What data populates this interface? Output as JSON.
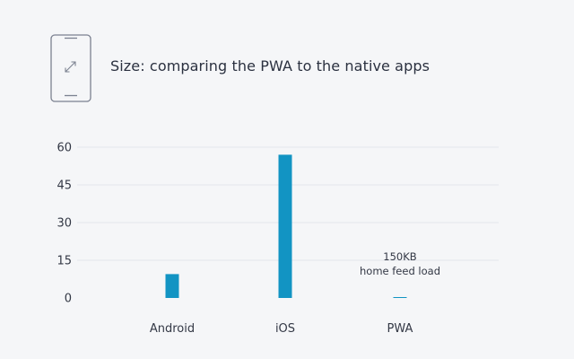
{
  "header": {
    "title": "Size: comparing the PWA to the native apps",
    "icon": "phone-resize-icon"
  },
  "colors": {
    "bar": "#1294c3",
    "grid": "#e3e6ec",
    "icon_stroke": "#7b8190",
    "background": "#f5f6f8"
  },
  "chart_data": {
    "type": "bar",
    "categories": [
      "Android",
      "iOS",
      "PWA"
    ],
    "values": [
      9.5,
      57,
      0.15
    ],
    "yticks": [
      0,
      15,
      30,
      45,
      60
    ],
    "ylim": [
      0,
      60
    ],
    "grid": true,
    "annotations": [
      {
        "category": "PWA",
        "lines": [
          "150KB",
          "home feed load"
        ]
      }
    ]
  }
}
